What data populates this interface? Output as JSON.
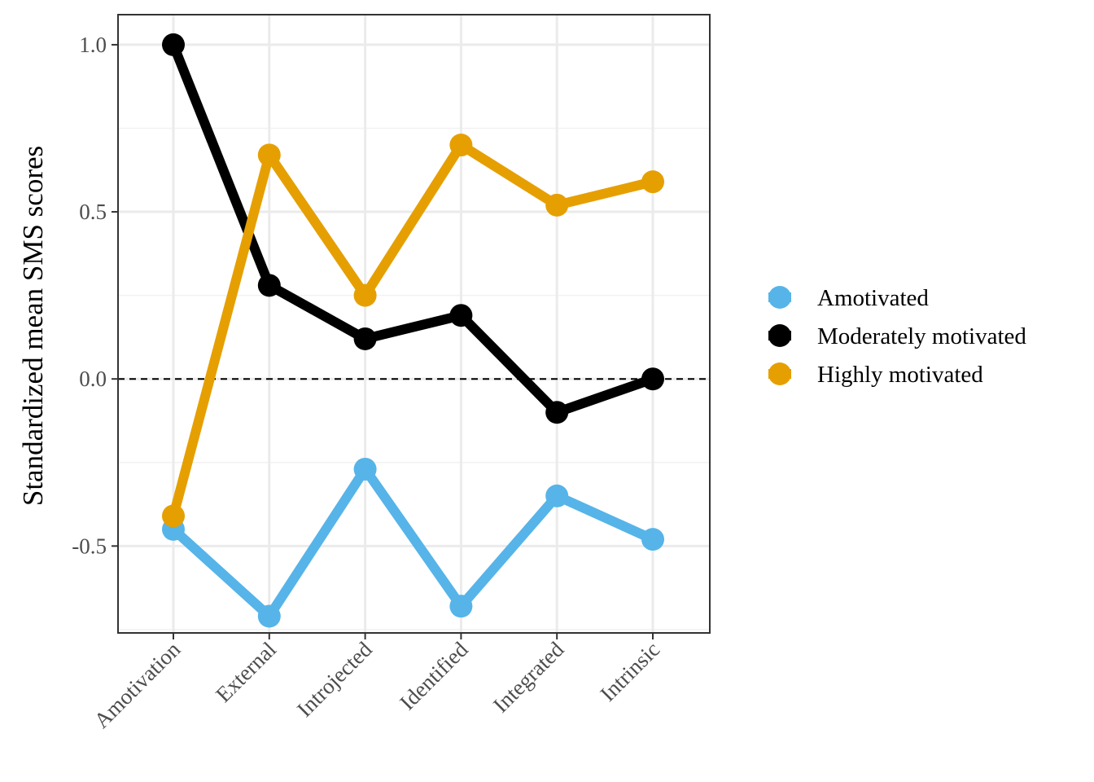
{
  "chart_data": {
    "type": "line",
    "title": "",
    "xlabel": "",
    "ylabel": "Standardized mean SMS scores",
    "categories": [
      "Amotivation",
      "External",
      "Introjected",
      "Identified",
      "Integrated",
      "Intrinsic"
    ],
    "ylim": [
      -0.76,
      1.09
    ],
    "yticks": [
      -0.5,
      0.0,
      0.5,
      1.0
    ],
    "ytick_labels": [
      "-0.5",
      "0.0",
      "0.5",
      "1.0"
    ],
    "reference_line": 0.0,
    "grid": true,
    "legend_position": "right",
    "series": [
      {
        "name": "Amotivated",
        "color": "#56B4E9",
        "values": [
          -0.45,
          -0.71,
          -0.27,
          -0.68,
          -0.35,
          -0.48
        ]
      },
      {
        "name": "Moderately motivated",
        "color": "#000000",
        "values": [
          1.0,
          0.28,
          0.12,
          0.19,
          -0.1,
          0.0
        ]
      },
      {
        "name": "Highly motivated",
        "color": "#E69F00",
        "values": [
          -0.41,
          0.67,
          0.25,
          0.7,
          0.52,
          0.59
        ]
      }
    ]
  }
}
